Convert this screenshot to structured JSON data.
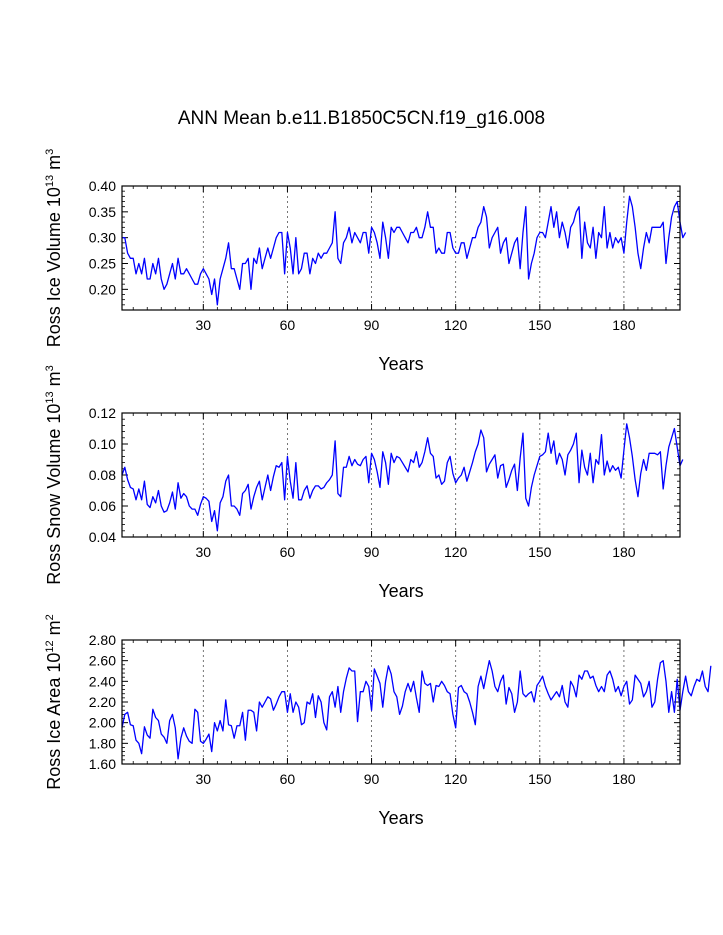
{
  "title": "ANN Mean b.e11.B1850C5CN.f19_g16.008",
  "series_color": "#0000ff",
  "chart_data": [
    {
      "type": "line",
      "ylabel_parts": [
        "Ross Ice Volume 10",
        "13",
        " m",
        "3"
      ],
      "xlabel": "Years",
      "xlim": [
        1,
        200
      ],
      "ylim": [
        0.16,
        0.4
      ],
      "xticks": [
        30,
        60,
        90,
        120,
        150,
        180
      ],
      "xtick_labels": [
        "30",
        "60",
        "90",
        "120",
        "150",
        "180"
      ],
      "yticks": [
        0.2,
        0.25,
        0.3,
        0.35,
        0.4
      ],
      "ytick_labels": [
        "0.20",
        "0.25",
        "0.30",
        "0.35",
        "0.40"
      ],
      "grid_x": true,
      "series": [
        {
          "name": "Ross Ice Volume",
          "x_start": 1,
          "values": [
            0.3,
            0.3,
            0.27,
            0.26,
            0.26,
            0.23,
            0.25,
            0.23,
            0.26,
            0.22,
            0.22,
            0.25,
            0.23,
            0.26,
            0.22,
            0.2,
            0.21,
            0.23,
            0.25,
            0.22,
            0.26,
            0.23,
            0.23,
            0.24,
            0.23,
            0.22,
            0.21,
            0.21,
            0.23,
            0.24,
            0.23,
            0.22,
            0.19,
            0.22,
            0.17,
            0.22,
            0.24,
            0.26,
            0.29,
            0.24,
            0.24,
            0.22,
            0.2,
            0.25,
            0.25,
            0.26,
            0.2,
            0.26,
            0.25,
            0.28,
            0.24,
            0.26,
            0.28,
            0.26,
            0.28,
            0.3,
            0.31,
            0.31,
            0.23,
            0.31,
            0.28,
            0.23,
            0.3,
            0.23,
            0.24,
            0.27,
            0.27,
            0.23,
            0.26,
            0.25,
            0.27,
            0.26,
            0.27,
            0.27,
            0.28,
            0.29,
            0.35,
            0.26,
            0.25,
            0.29,
            0.3,
            0.32,
            0.29,
            0.31,
            0.3,
            0.29,
            0.31,
            0.31,
            0.27,
            0.32,
            0.31,
            0.29,
            0.26,
            0.33,
            0.3,
            0.26,
            0.32,
            0.31,
            0.32,
            0.32,
            0.31,
            0.3,
            0.29,
            0.31,
            0.31,
            0.32,
            0.3,
            0.3,
            0.32,
            0.35,
            0.32,
            0.32,
            0.27,
            0.28,
            0.27,
            0.27,
            0.31,
            0.31,
            0.28,
            0.27,
            0.27,
            0.29,
            0.29,
            0.26,
            0.28,
            0.3,
            0.3,
            0.32,
            0.33,
            0.36,
            0.34,
            0.28,
            0.3,
            0.31,
            0.32,
            0.27,
            0.29,
            0.3,
            0.25,
            0.27,
            0.29,
            0.3,
            0.24,
            0.31,
            0.36,
            0.22,
            0.25,
            0.27,
            0.3,
            0.31,
            0.31,
            0.3,
            0.33,
            0.36,
            0.32,
            0.35,
            0.3,
            0.33,
            0.31,
            0.28,
            0.32,
            0.33,
            0.35,
            0.36,
            0.26,
            0.33,
            0.29,
            0.28,
            0.32,
            0.26,
            0.31,
            0.3,
            0.36,
            0.28,
            0.31,
            0.28,
            0.3,
            0.29,
            0.3,
            0.27,
            0.33,
            0.38,
            0.36,
            0.32,
            0.27,
            0.24,
            0.28,
            0.31,
            0.29,
            0.32,
            0.32,
            0.32,
            0.32,
            0.33,
            0.25,
            0.3,
            0.34,
            0.36,
            0.37,
            0.33,
            0.3,
            0.31
          ]
        }
      ]
    },
    {
      "type": "line",
      "ylabel_parts": [
        "Ross Snow Volume 10",
        "13",
        " m",
        "3"
      ],
      "xlabel": "Years",
      "xlim": [
        1,
        200
      ],
      "ylim": [
        0.04,
        0.12
      ],
      "xticks": [
        30,
        60,
        90,
        120,
        150,
        180
      ],
      "xtick_labels": [
        "30",
        "60",
        "90",
        "120",
        "150",
        "180"
      ],
      "yticks": [
        0.04,
        0.06,
        0.08,
        0.1,
        0.12
      ],
      "ytick_labels": [
        "0.04",
        "0.06",
        "0.08",
        "0.10",
        "0.12"
      ],
      "grid_x": true,
      "series": [
        {
          "name": "Ross Snow Volume",
          "x_start": 1,
          "values": [
            0.08,
            0.085,
            0.077,
            0.072,
            0.071,
            0.064,
            0.071,
            0.064,
            0.076,
            0.061,
            0.059,
            0.066,
            0.062,
            0.07,
            0.06,
            0.056,
            0.057,
            0.062,
            0.069,
            0.058,
            0.075,
            0.065,
            0.068,
            0.066,
            0.06,
            0.058,
            0.058,
            0.054,
            0.061,
            0.066,
            0.065,
            0.063,
            0.05,
            0.057,
            0.044,
            0.062,
            0.066,
            0.076,
            0.08,
            0.06,
            0.06,
            0.058,
            0.054,
            0.068,
            0.07,
            0.074,
            0.058,
            0.066,
            0.072,
            0.076,
            0.064,
            0.072,
            0.08,
            0.07,
            0.079,
            0.086,
            0.085,
            0.088,
            0.064,
            0.092,
            0.076,
            0.065,
            0.088,
            0.064,
            0.064,
            0.07,
            0.073,
            0.065,
            0.07,
            0.073,
            0.073,
            0.071,
            0.072,
            0.075,
            0.077,
            0.08,
            0.102,
            0.068,
            0.066,
            0.085,
            0.085,
            0.092,
            0.086,
            0.09,
            0.087,
            0.086,
            0.09,
            0.092,
            0.075,
            0.094,
            0.09,
            0.082,
            0.072,
            0.095,
            0.088,
            0.074,
            0.094,
            0.088,
            0.092,
            0.091,
            0.088,
            0.085,
            0.082,
            0.09,
            0.088,
            0.095,
            0.085,
            0.088,
            0.095,
            0.104,
            0.094,
            0.092,
            0.078,
            0.08,
            0.074,
            0.076,
            0.088,
            0.092,
            0.081,
            0.075,
            0.078,
            0.08,
            0.085,
            0.076,
            0.082,
            0.088,
            0.095,
            0.1,
            0.109,
            0.104,
            0.082,
            0.087,
            0.09,
            0.093,
            0.078,
            0.086,
            0.087,
            0.072,
            0.077,
            0.083,
            0.087,
            0.07,
            0.091,
            0.107,
            0.065,
            0.06,
            0.072,
            0.08,
            0.086,
            0.092,
            0.093,
            0.095,
            0.107,
            0.094,
            0.102,
            0.087,
            0.094,
            0.09,
            0.08,
            0.093,
            0.096,
            0.1,
            0.107,
            0.075,
            0.096,
            0.085,
            0.08,
            0.094,
            0.075,
            0.09,
            0.087,
            0.106,
            0.08,
            0.089,
            0.082,
            0.086,
            0.083,
            0.085,
            0.078,
            0.096,
            0.113,
            0.104,
            0.092,
            0.077,
            0.066,
            0.081,
            0.09,
            0.083,
            0.094,
            0.094,
            0.094,
            0.093,
            0.095,
            0.071,
            0.086,
            0.098,
            0.104,
            0.11,
            0.098,
            0.086,
            0.09
          ]
        }
      ]
    },
    {
      "type": "line",
      "ylabel_parts": [
        "Ross Ice Area 10",
        "12",
        " m",
        "2"
      ],
      "xlabel": "Years",
      "xlim": [
        1,
        200
      ],
      "ylim": [
        1.6,
        2.8
      ],
      "xticks": [
        30,
        60,
        90,
        120,
        150,
        180
      ],
      "xtick_labels": [
        "30",
        "60",
        "90",
        "120",
        "150",
        "180"
      ],
      "yticks": [
        1.6,
        1.8,
        2.0,
        2.2,
        2.4,
        2.6,
        2.8
      ],
      "ytick_labels": [
        "1.60",
        "1.80",
        "2.00",
        "2.20",
        "2.40",
        "2.60",
        "2.80"
      ],
      "grid_x": true,
      "series": [
        {
          "name": "Ross Ice Area",
          "x_start": 1,
          "values": [
            1.95,
            2.08,
            2.1,
            1.98,
            1.97,
            1.83,
            1.8,
            1.7,
            1.96,
            1.88,
            1.85,
            2.13,
            2.05,
            2.02,
            1.89,
            1.86,
            1.8,
            2.02,
            2.08,
            1.95,
            1.65,
            1.85,
            1.95,
            1.87,
            1.82,
            1.8,
            2.13,
            2.1,
            1.82,
            1.8,
            1.84,
            1.89,
            1.72,
            2.0,
            1.92,
            2.02,
            1.92,
            2.22,
            1.98,
            1.97,
            1.85,
            1.97,
            1.97,
            2.1,
            1.83,
            2.12,
            2.12,
            2.1,
            1.92,
            2.2,
            2.15,
            2.2,
            2.25,
            2.23,
            2.12,
            2.18,
            2.25,
            2.3,
            2.3,
            2.1,
            2.28,
            2.1,
            2.2,
            2.15,
            1.98,
            2.0,
            2.2,
            2.18,
            2.28,
            2.05,
            2.26,
            2.2,
            2.0,
            1.93,
            2.25,
            2.3,
            2.15,
            2.35,
            2.1,
            2.3,
            2.43,
            2.53,
            2.5,
            2.5,
            2.01,
            2.3,
            2.3,
            2.4,
            2.35,
            2.12,
            2.52,
            2.45,
            2.38,
            2.15,
            2.4,
            2.55,
            2.47,
            2.3,
            2.25,
            2.08,
            2.16,
            2.3,
            2.38,
            2.3,
            2.4,
            2.24,
            2.1,
            2.5,
            2.38,
            2.36,
            2.38,
            2.2,
            2.36,
            2.35,
            2.4,
            2.36,
            2.3,
            2.28,
            2.08,
            1.95,
            2.34,
            2.36,
            2.3,
            2.28,
            2.2,
            2.1,
            1.98,
            2.35,
            2.45,
            2.33,
            2.47,
            2.6,
            2.5,
            2.35,
            2.3,
            2.4,
            2.46,
            2.18,
            2.34,
            2.28,
            2.1,
            2.2,
            2.5,
            2.28,
            2.25,
            2.28,
            2.3,
            2.2,
            2.36,
            2.4,
            2.45,
            2.35,
            2.28,
            2.22,
            2.26,
            2.3,
            2.25,
            2.36,
            2.2,
            2.15,
            2.4,
            2.35,
            2.25,
            2.46,
            2.42,
            2.5,
            2.5,
            2.43,
            2.45,
            2.36,
            2.3,
            2.35,
            2.3,
            2.46,
            2.5,
            2.42,
            2.3,
            2.35,
            2.26,
            2.35,
            2.4,
            2.18,
            2.22,
            2.46,
            2.42,
            2.38,
            2.25,
            2.3,
            2.4,
            2.15,
            2.2,
            2.42,
            2.58,
            2.6,
            2.4,
            2.1,
            2.3,
            2.1,
            2.42,
            2.12,
            2.3,
            2.45,
            2.3,
            2.26,
            2.35,
            2.42,
            2.4,
            2.5,
            2.35,
            2.3,
            2.55
          ]
        }
      ]
    }
  ]
}
